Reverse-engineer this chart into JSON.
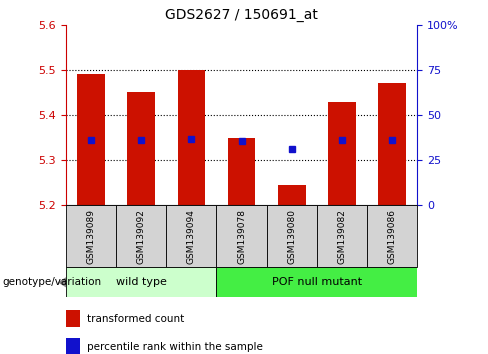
{
  "title": "GDS2627 / 150691_at",
  "samples": [
    "GSM139089",
    "GSM139092",
    "GSM139094",
    "GSM139078",
    "GSM139080",
    "GSM139082",
    "GSM139086"
  ],
  "bar_bottoms": [
    5.2,
    5.2,
    5.2,
    5.2,
    5.2,
    5.2,
    5.2
  ],
  "bar_tops": [
    5.49,
    5.45,
    5.5,
    5.35,
    5.245,
    5.43,
    5.47
  ],
  "percentile_values": [
    5.345,
    5.345,
    5.348,
    5.342,
    5.325,
    5.345,
    5.345
  ],
  "ylim": [
    5.2,
    5.6
  ],
  "yticks_left": [
    5.2,
    5.3,
    5.4,
    5.5,
    5.6
  ],
  "yticks_right": [
    0,
    25,
    50,
    75,
    100
  ],
  "bar_color": "#cc1100",
  "percentile_color": "#1111cc",
  "bar_width": 0.55,
  "tick_label_color_left": "#cc0000",
  "tick_label_color_right": "#1111cc",
  "wt_color": "#ccffcc",
  "pof_color": "#44ee44",
  "legend_labels": [
    "transformed count",
    "percentile rank within the sample"
  ],
  "genotype_label": "genotype/variation"
}
